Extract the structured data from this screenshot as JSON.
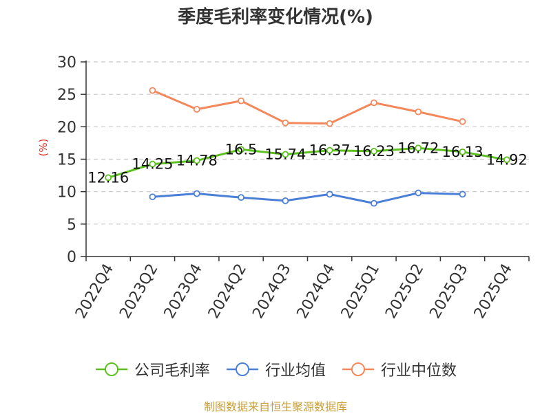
{
  "title": "季度毛利率变化情况(%)",
  "source_note": "制图数据来自恒生聚源数据库",
  "colors": {
    "gross_margin": "#5cc11f",
    "industry_avg": "#4a7fd8",
    "industry_median": "#f4885a",
    "grid": "#c8c8c8",
    "axis": "#333333",
    "ylabel": "#e0281e"
  },
  "chart_data": {
    "type": "line",
    "title": "季度毛利率变化情况(%)",
    "ylabel": "(%)",
    "xlabel": "",
    "ylim": [
      0,
      30
    ],
    "yticks": [
      0,
      5,
      10,
      15,
      20,
      25,
      30
    ],
    "grid": true,
    "legend_position": "bottom",
    "x_tick_labels": [
      "2022Q4",
      "2023Q2",
      "2023Q4",
      "2024Q2",
      "2024Q3",
      "2024Q4",
      "2025Q1",
      "2025Q2",
      "2025Q3",
      "2025Q4"
    ],
    "series": [
      {
        "name": "公司毛利率",
        "color": "#5cc11f",
        "show_labels": true,
        "values": [
          12.16,
          14.25,
          14.78,
          16.5,
          15.74,
          16.37,
          16.23,
          16.72,
          16.13,
          14.92
        ]
      },
      {
        "name": "行业均值",
        "color": "#4a7fd8",
        "show_labels": false,
        "values": [
          null,
          9.2,
          9.7,
          9.1,
          8.6,
          9.6,
          8.2,
          9.8,
          9.6,
          null
        ]
      },
      {
        "name": "行业中位数",
        "color": "#f4885a",
        "show_labels": false,
        "values": [
          null,
          25.6,
          22.7,
          24.0,
          20.6,
          20.5,
          23.7,
          22.3,
          20.8,
          null
        ]
      }
    ]
  }
}
